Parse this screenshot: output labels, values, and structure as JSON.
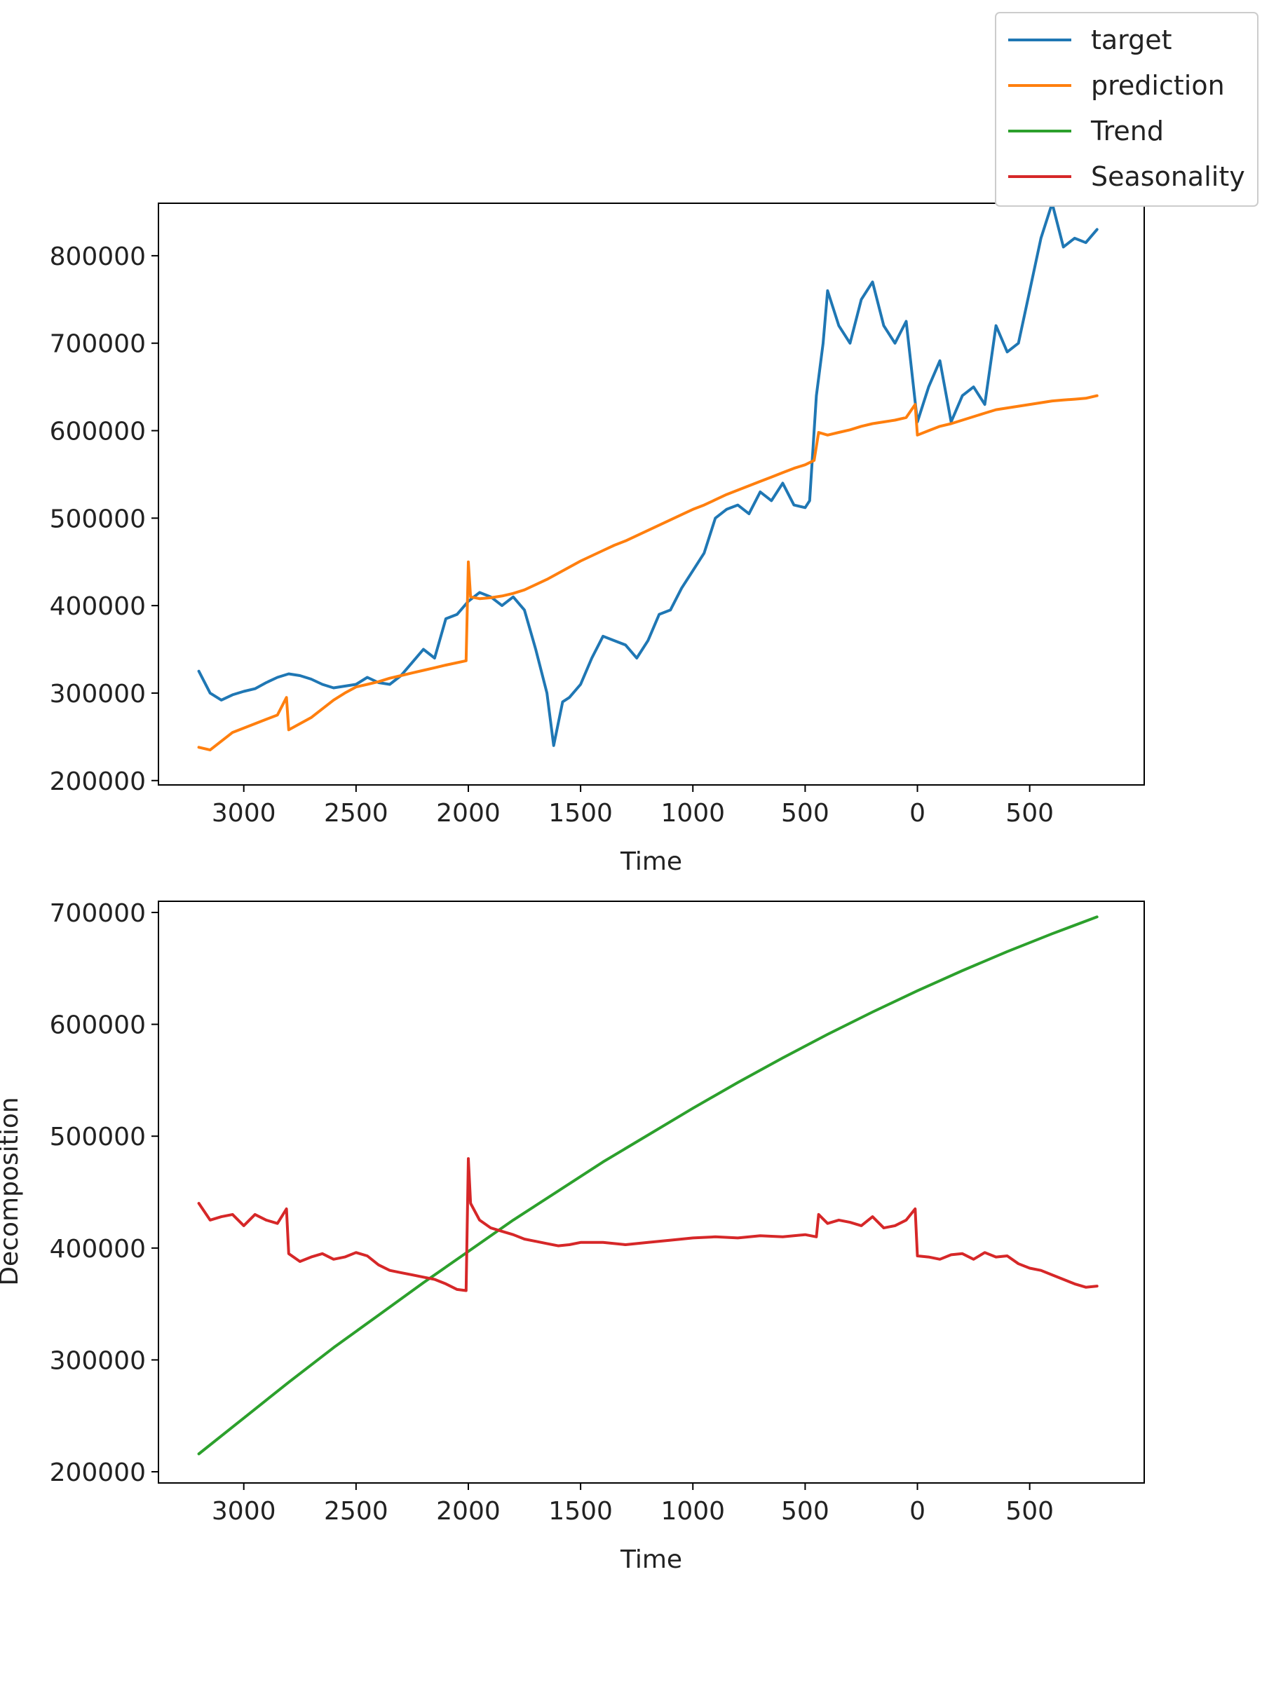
{
  "legend": {
    "placement": "top-right",
    "entries": [
      {
        "label": "target",
        "color": "#1f77b4"
      },
      {
        "label": "prediction",
        "color": "#ff7f0e"
      },
      {
        "label": "Trend",
        "color": "#2ca02c"
      },
      {
        "label": "Seasonality",
        "color": "#d62728"
      }
    ]
  },
  "chart_data": [
    {
      "type": "line",
      "xlabel": "Time",
      "ylabel": "",
      "xlim": [
        3380,
        -1010
      ],
      "ylim": [
        195000,
        860000
      ],
      "xticks": [
        3000,
        2500,
        2000,
        1500,
        1000,
        500,
        0,
        -500
      ],
      "xtick_labels": [
        "3000",
        "2500",
        "2000",
        "1500",
        "1000",
        "500",
        "0",
        "500"
      ],
      "yticks": [
        200000,
        300000,
        400000,
        500000,
        600000,
        700000,
        800000
      ],
      "ytick_labels": [
        "200000",
        "300000",
        "400000",
        "500000",
        "600000",
        "700000",
        "800000"
      ],
      "grid": false,
      "series": [
        {
          "name": "target",
          "color": "#1f77b4",
          "x": [
            3200,
            3150,
            3100,
            3050,
            3000,
            2950,
            2900,
            2850,
            2800,
            2750,
            2700,
            2650,
            2600,
            2550,
            2500,
            2450,
            2400,
            2350,
            2300,
            2250,
            2200,
            2150,
            2100,
            2050,
            2000,
            1950,
            1900,
            1850,
            1800,
            1750,
            1700,
            1650,
            1620,
            1580,
            1550,
            1500,
            1450,
            1400,
            1350,
            1300,
            1250,
            1200,
            1150,
            1100,
            1050,
            1000,
            950,
            900,
            850,
            800,
            750,
            700,
            650,
            600,
            550,
            500,
            480,
            450,
            420,
            400,
            350,
            300,
            250,
            200,
            150,
            100,
            50,
            0,
            -50,
            -100,
            -150,
            -200,
            -250,
            -300,
            -350,
            -400,
            -450,
            -500,
            -550,
            -600,
            -650,
            -700,
            -750,
            -800
          ],
          "y": [
            325000,
            300000,
            292000,
            298000,
            302000,
            305000,
            312000,
            318000,
            322000,
            320000,
            316000,
            310000,
            306000,
            308000,
            310000,
            318000,
            312000,
            310000,
            320000,
            335000,
            350000,
            340000,
            385000,
            390000,
            405000,
            415000,
            410000,
            400000,
            410000,
            395000,
            350000,
            300000,
            240000,
            290000,
            295000,
            310000,
            340000,
            365000,
            360000,
            355000,
            340000,
            360000,
            390000,
            395000,
            420000,
            440000,
            460000,
            500000,
            510000,
            515000,
            505000,
            530000,
            520000,
            540000,
            515000,
            512000,
            520000,
            640000,
            700000,
            760000,
            720000,
            700000,
            750000,
            770000,
            720000,
            700000,
            725000,
            610000,
            650000,
            680000,
            610000,
            640000,
            650000,
            630000,
            720000,
            690000,
            700000,
            760000,
            820000,
            860000,
            810000,
            820000,
            815000,
            830000
          ]
        },
        {
          "name": "prediction",
          "color": "#ff7f0e",
          "x": [
            3200,
            3150,
            3100,
            3050,
            3000,
            2950,
            2900,
            2850,
            2810,
            2800,
            2750,
            2700,
            2650,
            2600,
            2550,
            2500,
            2450,
            2400,
            2350,
            2300,
            2250,
            2200,
            2150,
            2100,
            2010,
            2000,
            1990,
            1950,
            1900,
            1850,
            1800,
            1750,
            1700,
            1650,
            1600,
            1550,
            1500,
            1450,
            1400,
            1350,
            1300,
            1250,
            1200,
            1150,
            1100,
            1050,
            1000,
            950,
            900,
            850,
            800,
            750,
            700,
            650,
            600,
            550,
            500,
            460,
            440,
            400,
            350,
            300,
            250,
            200,
            150,
            100,
            50,
            10,
            0,
            -50,
            -100,
            -150,
            -200,
            -250,
            -300,
            -350,
            -400,
            -450,
            -500,
            -550,
            -600,
            -650,
            -700,
            -750,
            -800
          ],
          "y": [
            238000,
            235000,
            245000,
            255000,
            260000,
            265000,
            270000,
            275000,
            295000,
            258000,
            265000,
            272000,
            282000,
            292000,
            300000,
            307000,
            310000,
            313000,
            317000,
            320000,
            323000,
            326000,
            329000,
            332000,
            337000,
            450000,
            410000,
            408000,
            409000,
            411000,
            414000,
            418000,
            424000,
            430000,
            437000,
            444000,
            451000,
            457000,
            463000,
            469000,
            474000,
            480000,
            486000,
            492000,
            498000,
            504000,
            510000,
            515000,
            521000,
            527000,
            532000,
            537000,
            542000,
            547000,
            552000,
            557000,
            561000,
            566000,
            598000,
            595000,
            598000,
            601000,
            605000,
            608000,
            610000,
            612000,
            615000,
            630000,
            595000,
            600000,
            605000,
            608000,
            612000,
            616000,
            620000,
            624000,
            626000,
            628000,
            630000,
            632000,
            634000,
            635000,
            636000,
            637000,
            640000
          ]
        }
      ]
    },
    {
      "type": "line",
      "xlabel": "Time",
      "ylabel": "Decomposition",
      "xlim": [
        3380,
        -1010
      ],
      "ylim": [
        190000,
        710000
      ],
      "xticks": [
        3000,
        2500,
        2000,
        1500,
        1000,
        500,
        0,
        -500
      ],
      "xtick_labels": [
        "3000",
        "2500",
        "2000",
        "1500",
        "1000",
        "500",
        "0",
        "500"
      ],
      "yticks": [
        200000,
        300000,
        400000,
        500000,
        600000,
        700000
      ],
      "ytick_labels": [
        "200000",
        "300000",
        "400000",
        "500000",
        "600000",
        "700000"
      ],
      "grid": false,
      "series": [
        {
          "name": "Trend",
          "color": "#2ca02c",
          "x": [
            3200,
            3000,
            2800,
            2600,
            2400,
            2200,
            2000,
            1800,
            1600,
            1400,
            1200,
            1000,
            800,
            600,
            400,
            200,
            0,
            -200,
            -400,
            -600,
            -800
          ],
          "y": [
            216000,
            248000,
            280000,
            311000,
            340000,
            369000,
            397000,
            425000,
            451000,
            477000,
            501000,
            525000,
            548000,
            570000,
            591000,
            611000,
            630000,
            648000,
            665000,
            681000,
            696000
          ]
        },
        {
          "name": "Seasonality",
          "color": "#d62728",
          "x": [
            3200,
            3150,
            3100,
            3050,
            3000,
            2950,
            2900,
            2850,
            2810,
            2800,
            2750,
            2700,
            2650,
            2600,
            2550,
            2500,
            2450,
            2400,
            2350,
            2300,
            2250,
            2200,
            2150,
            2100,
            2050,
            2010,
            2000,
            1990,
            1950,
            1900,
            1850,
            1800,
            1750,
            1700,
            1650,
            1600,
            1550,
            1500,
            1400,
            1300,
            1200,
            1100,
            1000,
            900,
            800,
            700,
            600,
            500,
            450,
            440,
            400,
            350,
            300,
            250,
            200,
            150,
            100,
            50,
            10,
            0,
            -50,
            -100,
            -150,
            -200,
            -250,
            -300,
            -350,
            -400,
            -450,
            -500,
            -550,
            -600,
            -650,
            -700,
            -750,
            -800
          ],
          "y": [
            440000,
            425000,
            428000,
            430000,
            420000,
            430000,
            425000,
            422000,
            435000,
            395000,
            388000,
            392000,
            395000,
            390000,
            392000,
            396000,
            393000,
            385000,
            380000,
            378000,
            376000,
            374000,
            372000,
            368000,
            363000,
            362000,
            480000,
            440000,
            425000,
            418000,
            415000,
            412000,
            408000,
            406000,
            404000,
            402000,
            403000,
            405000,
            405000,
            403000,
            405000,
            407000,
            409000,
            410000,
            409000,
            411000,
            410000,
            412000,
            410000,
            430000,
            422000,
            425000,
            423000,
            420000,
            428000,
            418000,
            420000,
            425000,
            435000,
            393000,
            392000,
            390000,
            394000,
            395000,
            390000,
            396000,
            392000,
            393000,
            386000,
            382000,
            380000,
            376000,
            372000,
            368000,
            365000,
            366000
          ]
        }
      ]
    }
  ]
}
